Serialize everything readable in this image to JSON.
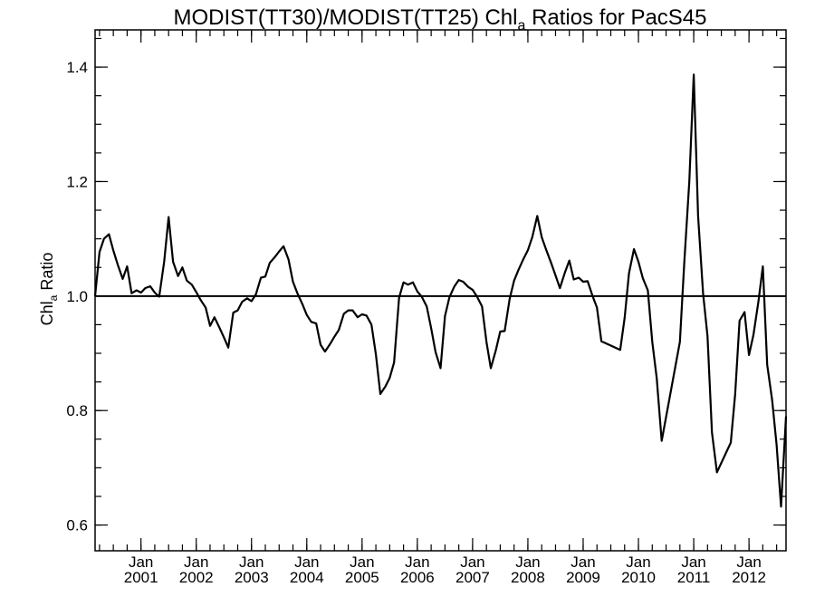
{
  "chart_data": {
    "type": "line",
    "title": {
      "main": "MODIST(TT30)/MODIST(TT25)  Chl",
      "subscript": "a",
      "rest": " Ratios for PacS45"
    },
    "ylabel": {
      "main": "Chl",
      "subscript": "a",
      "rest": " Ratio"
    },
    "xlabel": "",
    "x_unit": "year (decimal)",
    "xlim": [
      2000.17,
      2012.67
    ],
    "ylim": [
      0.555,
      1.465
    ],
    "y_ticks": [
      0.6,
      0.8,
      1.0,
      1.2,
      1.4
    ],
    "y_tick_labels": [
      "0.6",
      "0.8",
      "1.0",
      "1.2",
      "1.4"
    ],
    "y_minor_ticks": [
      0.6,
      0.65,
      0.7,
      0.75,
      0.8,
      0.85,
      0.9,
      0.95,
      1.0,
      1.05,
      1.1,
      1.15,
      1.2,
      1.25,
      1.3,
      1.35,
      1.4,
      1.45
    ],
    "x_ticks": [
      {
        "x": 2001.0,
        "month": "Jan",
        "year": "2001"
      },
      {
        "x": 2002.0,
        "month": "Jan",
        "year": "2002"
      },
      {
        "x": 2003.0,
        "month": "Jan",
        "year": "2003"
      },
      {
        "x": 2004.0,
        "month": "Jan",
        "year": "2004"
      },
      {
        "x": 2005.0,
        "month": "Jan",
        "year": "2005"
      },
      {
        "x": 2006.0,
        "month": "Jan",
        "year": "2006"
      },
      {
        "x": 2007.0,
        "month": "Jan",
        "year": "2007"
      },
      {
        "x": 2008.0,
        "month": "Jan",
        "year": "2008"
      },
      {
        "x": 2009.0,
        "month": "Jan",
        "year": "2009"
      },
      {
        "x": 2010.0,
        "month": "Jan",
        "year": "2010"
      },
      {
        "x": 2011.0,
        "month": "Jan",
        "year": "2011"
      },
      {
        "x": 2012.0,
        "month": "Jan",
        "year": "2012"
      }
    ],
    "x_minor_step_years": 0.25,
    "reference_line": {
      "y": 1.0,
      "color": "#000000"
    },
    "grid": false,
    "legend": "none",
    "series": [
      {
        "color": "#000000",
        "points": [
          [
            2000.17,
            1.0
          ],
          [
            2000.25,
            1.077
          ],
          [
            2000.33,
            1.1
          ],
          [
            2000.42,
            1.108
          ],
          [
            2000.5,
            1.08
          ],
          [
            2000.58,
            1.055
          ],
          [
            2000.67,
            1.03
          ],
          [
            2000.75,
            1.052
          ],
          [
            2000.83,
            1.005
          ],
          [
            2000.92,
            1.01
          ],
          [
            2001.0,
            1.006
          ],
          [
            2001.08,
            1.014
          ],
          [
            2001.17,
            1.017
          ],
          [
            2001.25,
            1.006
          ],
          [
            2001.33,
            0.999
          ],
          [
            2001.42,
            1.06
          ],
          [
            2001.5,
            1.138
          ],
          [
            2001.58,
            1.06
          ],
          [
            2001.67,
            1.035
          ],
          [
            2001.75,
            1.05
          ],
          [
            2001.83,
            1.027
          ],
          [
            2001.92,
            1.02
          ],
          [
            2002.0,
            1.007
          ],
          [
            2002.08,
            0.993
          ],
          [
            2002.17,
            0.98
          ],
          [
            2002.25,
            0.948
          ],
          [
            2002.33,
            0.963
          ],
          [
            2002.42,
            0.945
          ],
          [
            2002.5,
            0.928
          ],
          [
            2002.58,
            0.91
          ],
          [
            2002.67,
            0.971
          ],
          [
            2002.75,
            0.975
          ],
          [
            2002.83,
            0.99
          ],
          [
            2002.92,
            0.996
          ],
          [
            2003.0,
            0.991
          ],
          [
            2003.08,
            1.003
          ],
          [
            2003.17,
            1.032
          ],
          [
            2003.25,
            1.034
          ],
          [
            2003.33,
            1.058
          ],
          [
            2003.42,
            1.068
          ],
          [
            2003.5,
            1.078
          ],
          [
            2003.58,
            1.087
          ],
          [
            2003.67,
            1.064
          ],
          [
            2003.75,
            1.025
          ],
          [
            2003.83,
            1.005
          ],
          [
            2003.92,
            0.986
          ],
          [
            2004.0,
            0.967
          ],
          [
            2004.08,
            0.955
          ],
          [
            2004.17,
            0.952
          ],
          [
            2004.25,
            0.915
          ],
          [
            2004.33,
            0.903
          ],
          [
            2004.42,
            0.916
          ],
          [
            2004.5,
            0.929
          ],
          [
            2004.58,
            0.941
          ],
          [
            2004.67,
            0.969
          ],
          [
            2004.75,
            0.975
          ],
          [
            2004.83,
            0.975
          ],
          [
            2004.92,
            0.963
          ],
          [
            2005.0,
            0.968
          ],
          [
            2005.08,
            0.966
          ],
          [
            2005.17,
            0.95
          ],
          [
            2005.25,
            0.898
          ],
          [
            2005.33,
            0.829
          ],
          [
            2005.42,
            0.842
          ],
          [
            2005.5,
            0.857
          ],
          [
            2005.58,
            0.884
          ],
          [
            2005.67,
            0.997
          ],
          [
            2005.75,
            1.024
          ],
          [
            2005.83,
            1.02
          ],
          [
            2005.92,
            1.024
          ],
          [
            2006.0,
            1.008
          ],
          [
            2006.08,
            0.999
          ],
          [
            2006.17,
            0.982
          ],
          [
            2006.25,
            0.944
          ],
          [
            2006.33,
            0.902
          ],
          [
            2006.42,
            0.874
          ],
          [
            2006.5,
            0.965
          ],
          [
            2006.58,
            0.998
          ],
          [
            2006.67,
            1.017
          ],
          [
            2006.75,
            1.028
          ],
          [
            2006.83,
            1.025
          ],
          [
            2006.92,
            1.016
          ],
          [
            2007.0,
            1.011
          ],
          [
            2007.08,
            0.999
          ],
          [
            2007.17,
            0.982
          ],
          [
            2007.25,
            0.92
          ],
          [
            2007.33,
            0.874
          ],
          [
            2007.42,
            0.905
          ],
          [
            2007.5,
            0.938
          ],
          [
            2007.58,
            0.939
          ],
          [
            2007.67,
            0.995
          ],
          [
            2007.75,
            1.027
          ],
          [
            2007.83,
            1.046
          ],
          [
            2007.92,
            1.065
          ],
          [
            2008.0,
            1.08
          ],
          [
            2008.08,
            1.103
          ],
          [
            2008.17,
            1.14
          ],
          [
            2008.25,
            1.103
          ],
          [
            2008.33,
            1.081
          ],
          [
            2008.42,
            1.058
          ],
          [
            2008.5,
            1.036
          ],
          [
            2008.58,
            1.014
          ],
          [
            2008.67,
            1.041
          ],
          [
            2008.75,
            1.062
          ],
          [
            2008.83,
            1.029
          ],
          [
            2008.92,
            1.032
          ],
          [
            2009.0,
            1.025
          ],
          [
            2009.08,
            1.026
          ],
          [
            2009.17,
            1.0
          ],
          [
            2009.25,
            0.98
          ],
          [
            2009.33,
            0.921
          ],
          [
            2009.67,
            0.906
          ],
          [
            2009.75,
            0.962
          ],
          [
            2009.83,
            1.04
          ],
          [
            2009.92,
            1.082
          ],
          [
            2010.0,
            1.06
          ],
          [
            2010.08,
            1.031
          ],
          [
            2010.17,
            1.01
          ],
          [
            2010.25,
            0.92
          ],
          [
            2010.33,
            0.857
          ],
          [
            2010.42,
            0.747
          ],
          [
            2010.75,
            0.92
          ],
          [
            2010.83,
            1.06
          ],
          [
            2010.92,
            1.2
          ],
          [
            2011.0,
            1.387
          ],
          [
            2011.08,
            1.14
          ],
          [
            2011.17,
            1.005
          ],
          [
            2011.25,
            0.93
          ],
          [
            2011.33,
            0.762
          ],
          [
            2011.42,
            0.692
          ],
          [
            2011.67,
            0.744
          ],
          [
            2011.75,
            0.828
          ],
          [
            2011.83,
            0.957
          ],
          [
            2011.92,
            0.972
          ],
          [
            2012.0,
            0.897
          ],
          [
            2012.08,
            0.932
          ],
          [
            2012.17,
            0.99
          ],
          [
            2012.25,
            1.052
          ],
          [
            2012.33,
            0.88
          ],
          [
            2012.42,
            0.818
          ],
          [
            2012.5,
            0.74
          ],
          [
            2012.58,
            0.632
          ],
          [
            2012.67,
            0.79
          ]
        ]
      }
    ]
  }
}
